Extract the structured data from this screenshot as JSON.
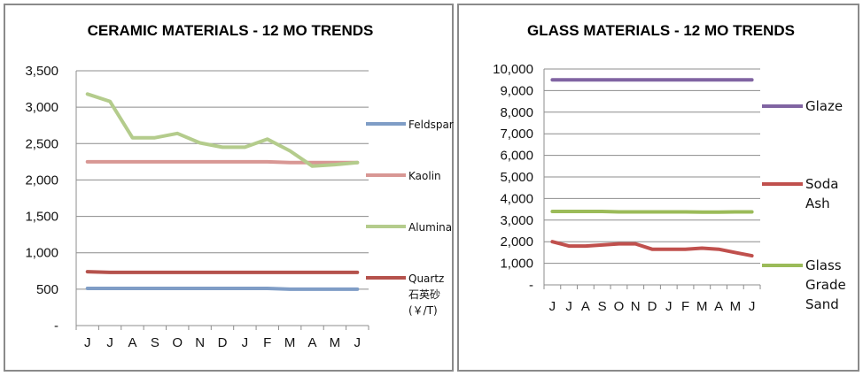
{
  "chart_data": [
    {
      "type": "line",
      "title": "CERAMIC MATERIALS - 12 MO TRENDS",
      "categories": [
        "J",
        "J",
        "A",
        "S",
        "O",
        "N",
        "D",
        "J",
        "F",
        "M",
        "A",
        "M",
        "J"
      ],
      "ylim": [
        0,
        3500
      ],
      "yticks": [
        "-",
        "500",
        "1,000",
        "1,500",
        "2,000",
        "2,500",
        "3,000",
        "3,500"
      ],
      "grid": true,
      "legend_position": "right",
      "series": [
        {
          "name": "Feldspar",
          "color": "#7f9dc6",
          "values": [
            510,
            510,
            510,
            510,
            510,
            510,
            510,
            510,
            510,
            500,
            500,
            500,
            500
          ]
        },
        {
          "name": "Kaolin",
          "color": "#d89794",
          "values": [
            2250,
            2250,
            2250,
            2250,
            2250,
            2250,
            2250,
            2250,
            2250,
            2240,
            2240,
            2240,
            2240
          ]
        },
        {
          "name": "Alumina",
          "color": "#b4cc8c",
          "values": [
            3180,
            3080,
            2580,
            2580,
            2640,
            2510,
            2450,
            2450,
            2560,
            2400,
            2190,
            2210,
            2240
          ]
        },
        {
          "name": "Quartz",
          "label_lines": [
            "Quartz",
            "石英砂",
            "(￥/T)"
          ],
          "color": "#b5524c",
          "values": [
            740,
            730,
            730,
            730,
            730,
            730,
            730,
            730,
            730,
            730,
            730,
            730,
            730
          ]
        }
      ]
    },
    {
      "type": "line",
      "title": "GLASS MATERIALS - 12 MO TRENDS",
      "categories": [
        "J",
        "J",
        "A",
        "S",
        "O",
        "N",
        "D",
        "J",
        "F",
        "M",
        "A",
        "M",
        "J"
      ],
      "ylim": [
        0,
        10000
      ],
      "yticks": [
        "-",
        "1,000",
        "2,000",
        "3,000",
        "4,000",
        "5,000",
        "6,000",
        "7,000",
        "8,000",
        "9,000",
        "10,000"
      ],
      "grid": true,
      "legend_position": "right",
      "series": [
        {
          "name": "Glaze",
          "label_lines": [
            "Glaze"
          ],
          "color": "#8064a2",
          "values": [
            9500,
            9500,
            9500,
            9500,
            9500,
            9500,
            9500,
            9500,
            9500,
            9500,
            9500,
            9500,
            9500
          ]
        },
        {
          "name": "Soda Ash",
          "label_lines": [
            "Soda",
            "Ash"
          ],
          "color": "#c0504d",
          "values": [
            2000,
            1800,
            1800,
            1850,
            1900,
            1900,
            1650,
            1650,
            1650,
            1700,
            1650,
            1500,
            1350
          ]
        },
        {
          "name": "Glass Grade Sand",
          "label_lines": [
            "Glass",
            "Grade",
            "Sand"
          ],
          "color": "#9bbb59",
          "values": [
            3400,
            3400,
            3400,
            3400,
            3380,
            3380,
            3380,
            3380,
            3380,
            3370,
            3370,
            3380,
            3380
          ]
        }
      ]
    }
  ]
}
